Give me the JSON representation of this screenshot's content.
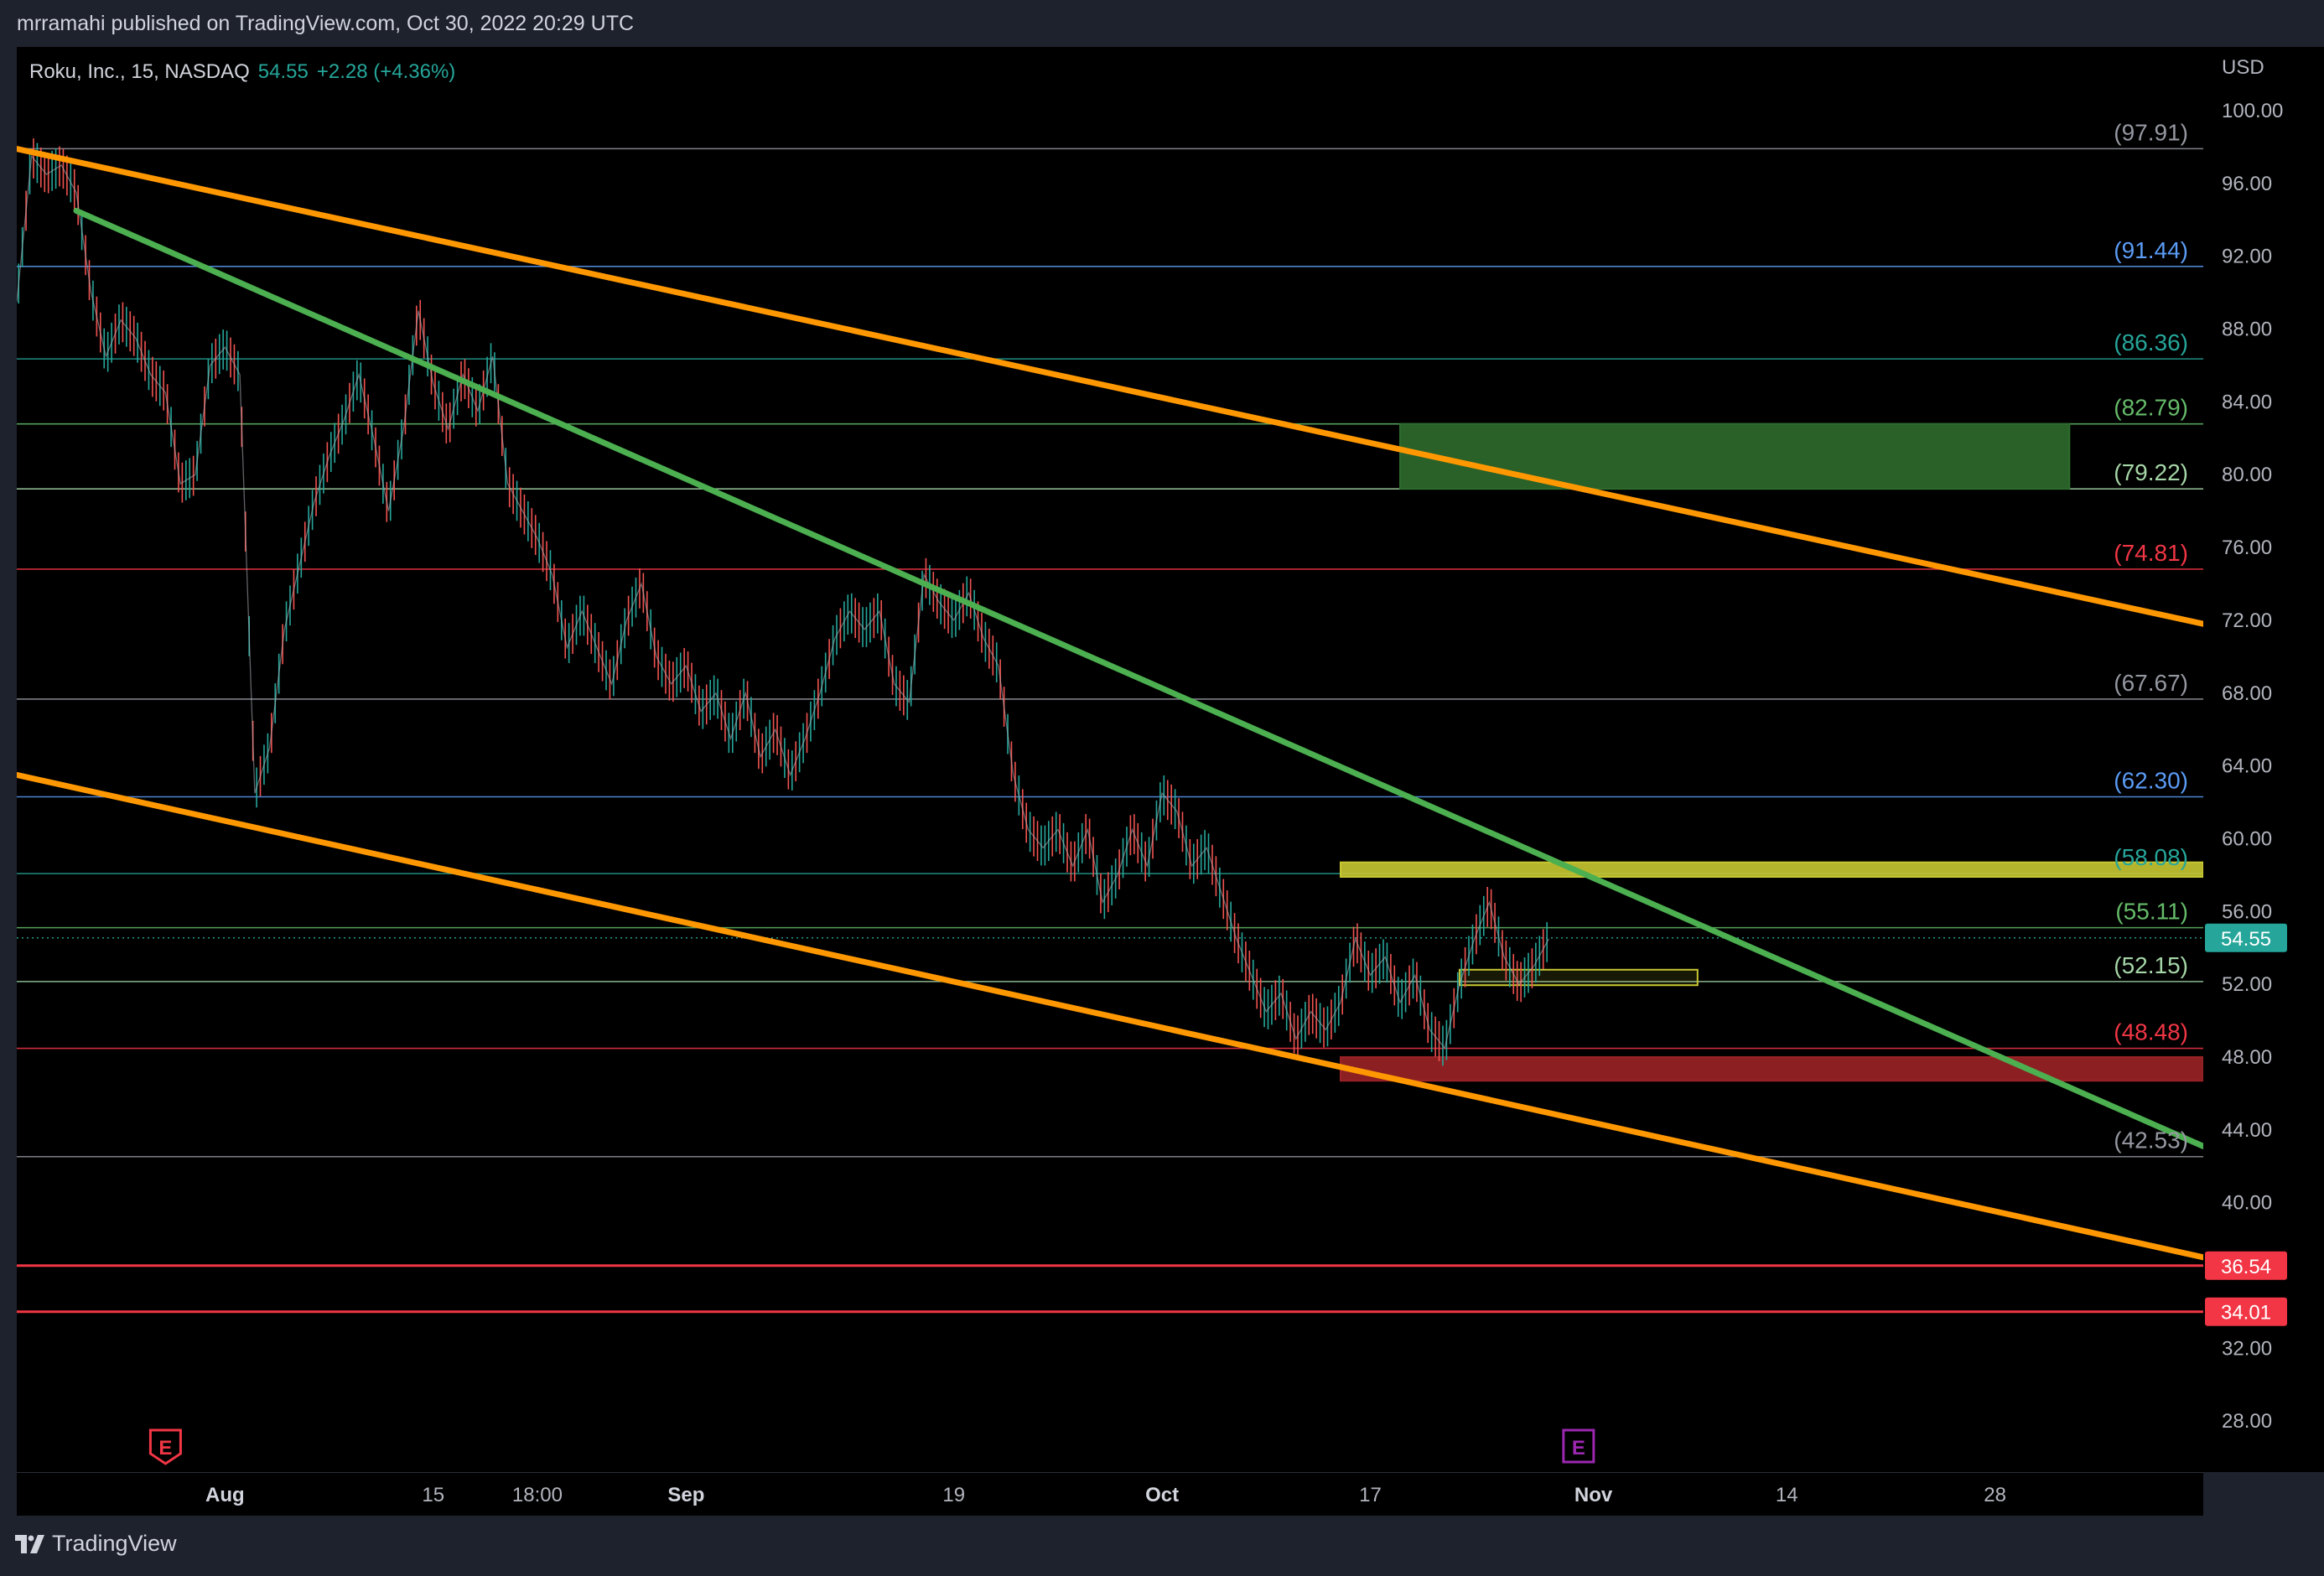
{
  "header": {
    "publisher_line": "mrramahi published on TradingView.com, Oct 30, 2022 20:29 UTC"
  },
  "legend": {
    "symbol": "Roku, Inc., 15, NASDAQ",
    "price": "54.55",
    "change": "+2.28 (+4.36%)"
  },
  "currency": "USD",
  "footer": {
    "brand": "TradingView"
  },
  "colors": {
    "bg": "#000000",
    "up": "#26a69a",
    "down": "#ef5350",
    "orange": "#ff9800",
    "green": "#4caf50",
    "zone_green": "#2e6b2e",
    "zone_yellow": "#c8c832",
    "zone_red": "#9b2226"
  },
  "chart_data": {
    "type": "candlestick",
    "symbol": "Roku, Inc.",
    "interval": "15",
    "exchange": "NASDAQ",
    "last_price": 54.55,
    "y_axis_ticks": [
      "100.00",
      "96.00",
      "92.00",
      "88.00",
      "84.00",
      "80.00",
      "76.00",
      "72.00",
      "68.00",
      "64.00",
      "60.00",
      "56.00",
      "52.00",
      "48.00",
      "44.00",
      "40.00",
      "32.00",
      "28.00"
    ],
    "y_range": [
      25.2,
      103.5
    ],
    "x_axis_ticks": [
      {
        "label": "Aug",
        "date": "2022-08-01",
        "bold": true
      },
      {
        "label": "15",
        "date": "2022-08-15"
      },
      {
        "label": "18:00",
        "date": "2022-08-22"
      },
      {
        "label": "Sep",
        "date": "2022-09-01",
        "bold": true
      },
      {
        "label": "19",
        "date": "2022-09-19"
      },
      {
        "label": "Oct",
        "date": "2022-10-03",
        "bold": true
      },
      {
        "label": "17",
        "date": "2022-10-17"
      },
      {
        "label": "Nov",
        "date": "2022-11-01",
        "bold": true
      },
      {
        "label": "14",
        "date": "2022-11-14"
      },
      {
        "label": "28",
        "date": "2022-11-28"
      }
    ],
    "x_range": [
      "2022-07-18",
      "2022-12-12"
    ],
    "levels": [
      {
        "label": "(97.91)",
        "value": 97.91,
        "color": "#9598a1"
      },
      {
        "label": "(91.44)",
        "value": 91.44,
        "color": "#5b9cf6"
      },
      {
        "label": "(86.36)",
        "value": 86.36,
        "color": "#26a69a"
      },
      {
        "label": "(82.79)",
        "value": 82.79,
        "color": "#66bb6a"
      },
      {
        "label": "(79.22)",
        "value": 79.22,
        "color": "#a5d6a7"
      },
      {
        "label": "(74.81)",
        "value": 74.81,
        "color": "#f23645"
      },
      {
        "label": "(67.67)",
        "value": 67.67,
        "color": "#9598a1"
      },
      {
        "label": "(62.30)",
        "value": 62.3,
        "color": "#5b9cf6"
      },
      {
        "label": "(58.08)",
        "value": 58.08,
        "color": "#26a69a"
      },
      {
        "label": "(55.11)",
        "value": 55.11,
        "color": "#66bb6a"
      },
      {
        "label": "(52.15)",
        "value": 52.15,
        "color": "#a5d6a7"
      },
      {
        "label": "(48.48)",
        "value": 48.48,
        "color": "#f23645"
      },
      {
        "label": "(42.53)",
        "value": 42.53,
        "color": "#9598a1"
      }
    ],
    "support_lines": [
      {
        "label": "36.54",
        "value": 36.54,
        "color": "#f23645"
      },
      {
        "label": "34.01",
        "value": 34.01,
        "color": "#f23645"
      }
    ],
    "trend_lines": [
      {
        "name": "upper-channel",
        "color": "#ff9800",
        "p1": [
          "2022-07-18",
          97.9
        ],
        "p2": [
          "2022-12-12",
          71.8
        ]
      },
      {
        "name": "lower-channel",
        "color": "#ff9800",
        "p1": [
          "2022-07-18",
          63.5
        ],
        "p2": [
          "2022-12-12",
          37.0
        ]
      },
      {
        "name": "descending-trend",
        "color": "#4caf50",
        "p1": [
          "2022-07-22",
          94.5
        ],
        "p2": [
          "2022-12-12",
          43.1
        ]
      }
    ],
    "zones": [
      {
        "name": "green-zone",
        "color": "#2e6b2e",
        "x1": "2022-10-19",
        "x2": "2022-12-03",
        "top": 82.79,
        "bottom": 79.22
      },
      {
        "name": "yellow-zone",
        "color": "#c8c832",
        "x1": "2022-10-15",
        "x2": "2022-12-12",
        "top": 58.7,
        "bottom": 57.9
      },
      {
        "name": "yellow-box-small",
        "color": "#c8c832",
        "x1": "2022-10-23",
        "x2": "2022-11-08",
        "top": 52.8,
        "bottom": 51.95
      },
      {
        "name": "red-zone",
        "color": "#9b2226",
        "x1": "2022-10-15",
        "x2": "2022-12-12",
        "top": 48.0,
        "bottom": 46.7
      }
    ],
    "earnings_markers": [
      {
        "label": "E",
        "date": "2022-07-28",
        "color": "#f23645"
      },
      {
        "label": "E",
        "date": "2022-10-31",
        "color": "#9c27b0"
      }
    ],
    "price_path": [
      [
        "2022-07-18",
        89.5
      ],
      [
        "2022-07-19",
        97.5
      ],
      [
        "2022-07-20",
        96.5
      ],
      [
        "2022-07-21",
        97.0
      ],
      [
        "2022-07-22",
        95.5
      ],
      [
        "2022-07-23",
        90.0
      ],
      [
        "2022-07-24",
        86.5
      ],
      [
        "2022-07-25",
        88.5
      ],
      [
        "2022-07-26",
        87.5
      ],
      [
        "2022-07-27",
        85.5
      ],
      [
        "2022-07-28",
        84.5
      ],
      [
        "2022-07-29",
        79.5
      ],
      [
        "2022-07-30",
        80.0
      ],
      [
        "2022-07-31",
        86.0
      ],
      [
        "2022-08-01",
        87.0
      ],
      [
        "2022-08-02",
        85.5
      ],
      [
        "2022-08-03",
        62.5
      ],
      [
        "2022-08-04",
        65.0
      ],
      [
        "2022-08-05",
        71.5
      ],
      [
        "2022-08-06",
        75.0
      ],
      [
        "2022-08-07",
        78.5
      ],
      [
        "2022-08-08",
        81.0
      ],
      [
        "2022-08-09",
        83.0
      ],
      [
        "2022-08-10",
        85.5
      ],
      [
        "2022-08-11",
        82.0
      ],
      [
        "2022-08-12",
        78.0
      ],
      [
        "2022-08-13",
        82.5
      ],
      [
        "2022-08-14",
        89.0
      ],
      [
        "2022-08-15",
        85.0
      ],
      [
        "2022-08-16",
        82.5
      ],
      [
        "2022-08-17",
        85.5
      ],
      [
        "2022-08-18",
        83.5
      ],
      [
        "2022-08-19",
        86.5
      ],
      [
        "2022-08-20",
        79.5
      ],
      [
        "2022-08-21",
        78.0
      ],
      [
        "2022-08-22",
        76.5
      ],
      [
        "2022-08-23",
        74.5
      ],
      [
        "2022-08-24",
        70.5
      ],
      [
        "2022-08-25",
        72.5
      ],
      [
        "2022-08-26",
        70.5
      ],
      [
        "2022-08-27",
        68.5
      ],
      [
        "2022-08-28",
        72.0
      ],
      [
        "2022-08-29",
        74.0
      ],
      [
        "2022-08-30",
        70.0
      ],
      [
        "2022-08-31",
        68.5
      ],
      [
        "2022-09-01",
        69.5
      ],
      [
        "2022-09-02",
        67.0
      ],
      [
        "2022-09-03",
        68.0
      ],
      [
        "2022-09-04",
        65.5
      ],
      [
        "2022-09-05",
        68.0
      ],
      [
        "2022-09-06",
        64.5
      ],
      [
        "2022-09-07",
        66.0
      ],
      [
        "2022-09-08",
        63.5
      ],
      [
        "2022-09-09",
        65.5
      ],
      [
        "2022-09-10",
        68.0
      ],
      [
        "2022-09-11",
        71.0
      ],
      [
        "2022-09-12",
        72.5
      ],
      [
        "2022-09-13",
        71.5
      ],
      [
        "2022-09-14",
        72.5
      ],
      [
        "2022-09-15",
        68.5
      ],
      [
        "2022-09-16",
        67.5
      ],
      [
        "2022-09-17",
        74.5
      ],
      [
        "2022-09-18",
        73.0
      ],
      [
        "2022-09-19",
        72.0
      ],
      [
        "2022-09-20",
        73.5
      ],
      [
        "2022-09-21",
        71.0
      ],
      [
        "2022-09-22",
        69.5
      ],
      [
        "2022-09-23",
        63.5
      ],
      [
        "2022-09-24",
        60.5
      ],
      [
        "2022-09-25",
        59.5
      ],
      [
        "2022-09-26",
        60.5
      ],
      [
        "2022-09-27",
        58.5
      ],
      [
        "2022-09-28",
        60.5
      ],
      [
        "2022-09-29",
        56.5
      ],
      [
        "2022-09-30",
        58.0
      ],
      [
        "2022-10-01",
        60.5
      ],
      [
        "2022-10-02",
        58.5
      ],
      [
        "2022-10-03",
        62.5
      ],
      [
        "2022-10-04",
        61.5
      ],
      [
        "2022-10-05",
        58.5
      ],
      [
        "2022-10-06",
        59.5
      ],
      [
        "2022-10-07",
        57.0
      ],
      [
        "2022-10-08",
        54.5
      ],
      [
        "2022-10-09",
        52.5
      ],
      [
        "2022-10-10",
        50.5
      ],
      [
        "2022-10-11",
        51.5
      ],
      [
        "2022-10-12",
        49.0
      ],
      [
        "2022-10-13",
        50.5
      ],
      [
        "2022-10-14",
        49.5
      ],
      [
        "2022-10-15",
        51.0
      ],
      [
        "2022-10-16",
        54.5
      ],
      [
        "2022-10-17",
        52.5
      ],
      [
        "2022-10-18",
        53.5
      ],
      [
        "2022-10-19",
        51.0
      ],
      [
        "2022-10-20",
        52.5
      ],
      [
        "2022-10-21",
        49.5
      ],
      [
        "2022-10-22",
        48.5
      ],
      [
        "2022-10-23",
        52.0
      ],
      [
        "2022-10-24",
        54.5
      ],
      [
        "2022-10-25",
        56.5
      ],
      [
        "2022-10-26",
        53.5
      ],
      [
        "2022-10-27",
        52.0
      ],
      [
        "2022-10-28",
        53.0
      ],
      [
        "2022-10-29",
        54.5
      ]
    ]
  }
}
